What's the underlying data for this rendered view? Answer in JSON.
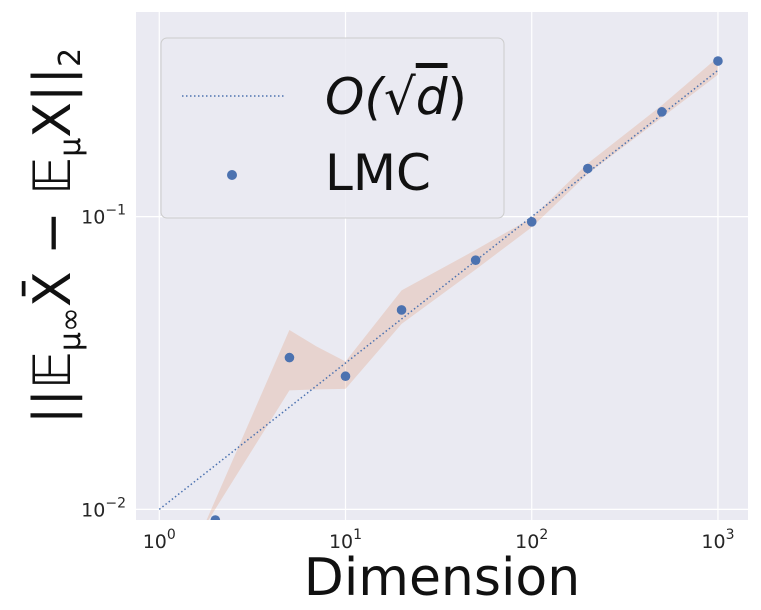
{
  "chart_data": {
    "type": "scatter",
    "xlabel": "Dimension",
    "ylabel": "||𝔼_{μ∞}X̄ − 𝔼_μX||₂",
    "ylabel_parts": {
      "bars": "||",
      "e1": "𝔼",
      "sub1": "μ∞",
      "xbar": "X̄",
      "minus": " − ",
      "e2": "𝔼",
      "sub2": "μ",
      "x": "X",
      "bars2": "||",
      "sub3": "2"
    },
    "xscale": "log",
    "yscale": "log",
    "xlim": [
      0.75,
      1450
    ],
    "ylim": [
      0.0092,
      0.5
    ],
    "x_ticks": [
      {
        "value": 1,
        "base": "10",
        "exp": "0"
      },
      {
        "value": 10,
        "base": "10",
        "exp": "1"
      },
      {
        "value": 100,
        "base": "10",
        "exp": "2"
      },
      {
        "value": 1000,
        "base": "10",
        "exp": "3"
      }
    ],
    "y_ticks": [
      {
        "value": 0.01,
        "base": "10",
        "exp": "−2"
      },
      {
        "value": 0.1,
        "base": "10",
        "exp": "−1"
      }
    ],
    "grid": true,
    "legend_position": "top-left",
    "series": [
      {
        "name": "O(√d)",
        "name_parts": {
          "pre": "O(",
          "root": "√",
          "d": "d",
          "post": ")"
        },
        "kind": "line",
        "style": "dotted",
        "color": "#4c72b0",
        "x": [
          1,
          1000
        ],
        "y": [
          0.01,
          0.316
        ]
      },
      {
        "name": "LMC",
        "kind": "scatter",
        "color": "#4c72b0",
        "x": [
          2,
          5,
          10,
          20,
          50,
          100,
          200,
          500,
          1000
        ],
        "y": [
          0.0092,
          0.033,
          0.0285,
          0.048,
          0.071,
          0.096,
          0.146,
          0.228,
          0.34
        ]
      },
      {
        "name": "",
        "kind": "band",
        "color": "#dd8452",
        "x": [
          1.7,
          5,
          7,
          10,
          20,
          50,
          100,
          200,
          500,
          1000
        ],
        "lower": [
          0.0085,
          0.0255,
          0.0257,
          0.0258,
          0.043,
          0.066,
          0.092,
          0.14,
          0.218,
          0.305
        ],
        "upper": [
          0.0085,
          0.041,
          0.036,
          0.032,
          0.056,
          0.077,
          0.099,
          0.152,
          0.24,
          0.35
        ]
      }
    ]
  }
}
